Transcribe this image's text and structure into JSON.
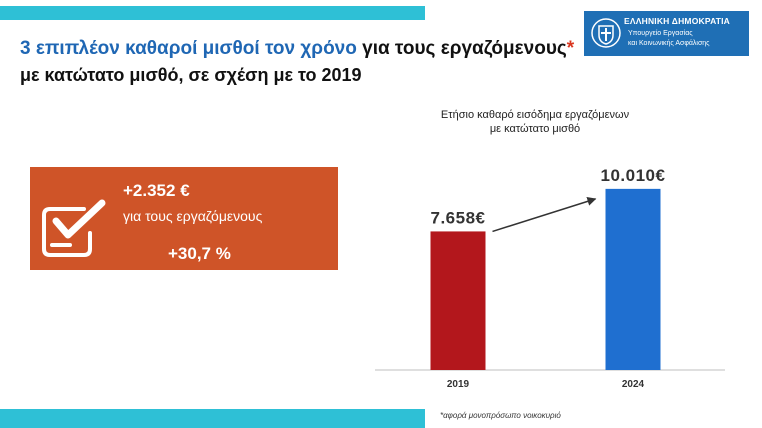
{
  "headline": {
    "part1": "3 επιπλέον καθαροί μισθοί τον χρόνο",
    "part2": " για τους εργαζόμενους",
    "asterisk": "*",
    "line2": "με κατώτατο μισθό, σε σχέση με το 2019"
  },
  "logo": {
    "title": "ΕΛΛΗΝΙΚΗ ΔΗΜΟΚΡΑΤΙΑ",
    "line1": "Υπουργείο Εργασίας",
    "line2": "και Κοινωνικής Ασφάλισης"
  },
  "callout": {
    "amount": "+2.352 €",
    "text": "για τους εργαζόμενους",
    "percent": "+30,7 %",
    "icon": "checklist-icon",
    "color": "#cf5428"
  },
  "footnote": "*αφορά μονοπρόσωπο νοικοκυριό",
  "colors": {
    "accent_bar": "#2ec0d6",
    "headline_blue": "#1f67b4",
    "bar_2019": "#b3171c",
    "bar_2024": "#1f6fd0"
  },
  "chart_data": {
    "type": "bar",
    "title_lines": [
      "Ετήσιο καθαρό εισόδημα εργαζόμενων",
      "με κατώτατο μισθό"
    ],
    "categories": [
      "2019",
      "2024"
    ],
    "values": [
      7658,
      10010
    ],
    "value_labels": [
      "7.658€",
      "10.010€"
    ],
    "ylim": [
      0,
      10500
    ],
    "grid": false,
    "trend_arrow": true
  }
}
